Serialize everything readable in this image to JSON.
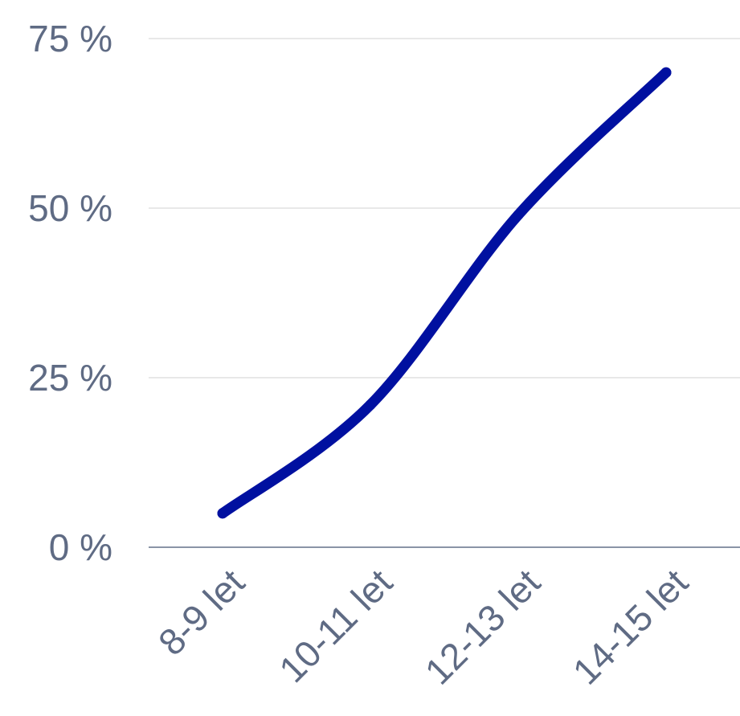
{
  "chart_data": {
    "type": "line",
    "categories": [
      "8-9 let",
      "10-11 let",
      "12-13 let",
      "14-15 let"
    ],
    "series": [
      {
        "values": [
          5,
          21,
          49,
          70
        ],
        "color": "#0010a0"
      }
    ],
    "y_ticks": [
      {
        "value": 0,
        "label": "0 %"
      },
      {
        "value": 25,
        "label": "25 %"
      },
      {
        "value": 50,
        "label": "50 %"
      },
      {
        "value": 75,
        "label": "75 %"
      }
    ],
    "ylim": [
      0,
      75
    ],
    "grid": true,
    "smooth": true,
    "title": "",
    "xlabel": "",
    "ylabel": "",
    "colors": {
      "text": "#5f6b84",
      "grid": "#d9d9d9",
      "baseline": "#8a94a6"
    }
  }
}
